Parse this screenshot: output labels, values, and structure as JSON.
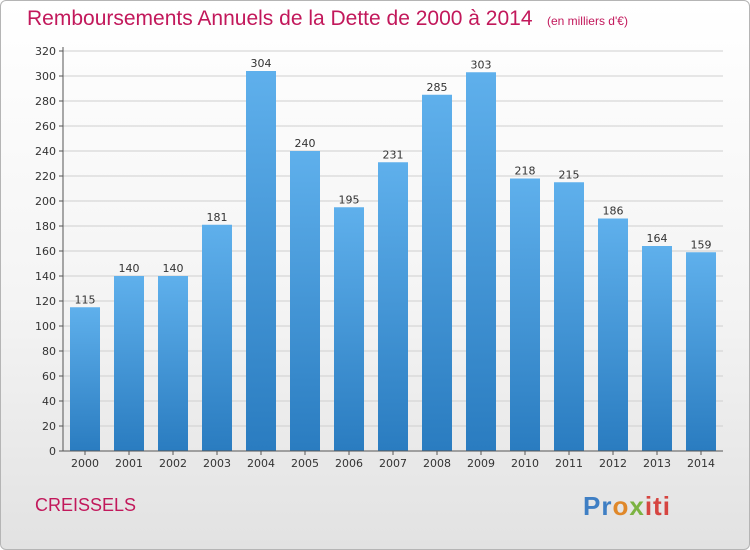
{
  "colors": {
    "accent": "#c2185b",
    "bar_top": "#5fb0ec",
    "bar_bottom": "#2a7cc0",
    "grid": "#cfcfcf",
    "axis": "#555555"
  },
  "chart_data": {
    "type": "bar",
    "title": "Remboursements Annuels de la Dette de 2000 à 2014",
    "subtitle": "(en milliers d'€)",
    "categories": [
      "2000",
      "2001",
      "2002",
      "2003",
      "2004",
      "2005",
      "2006",
      "2007",
      "2008",
      "2009",
      "2010",
      "2011",
      "2012",
      "2013",
      "2014"
    ],
    "values": [
      115,
      140,
      140,
      181,
      304,
      240,
      195,
      231,
      285,
      303,
      218,
      215,
      186,
      164,
      159
    ],
    "xlabel": "",
    "ylabel": "",
    "ylim": [
      0,
      320
    ],
    "yticks": [
      0,
      20,
      40,
      60,
      80,
      100,
      120,
      140,
      160,
      180,
      200,
      220,
      240,
      260,
      280,
      300,
      320
    ],
    "grid": true,
    "legend": "none"
  },
  "footer": {
    "commune": "CREISSELS",
    "logo": {
      "p1": "Pr",
      "p2": "o",
      "p3": "x",
      "p4": "iti"
    }
  }
}
